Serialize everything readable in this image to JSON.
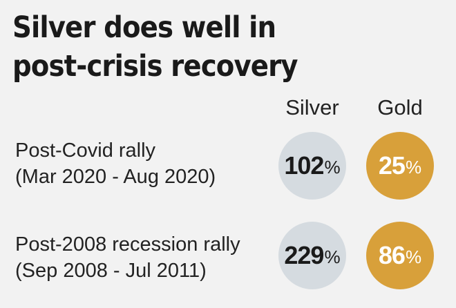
{
  "title_lines": [
    "Silver does well in",
    "post-crisis recovery"
  ],
  "columns": [
    "Silver",
    "Gold"
  ],
  "rows": [
    {
      "label": "Post-Covid rally",
      "period": "(Mar 2020 - Aug 2020)",
      "silver": "102",
      "gold": "25"
    },
    {
      "label": "Post-2008 recession rally",
      "period": "(Sep 2008 - Jul 2011)",
      "silver": "229",
      "gold": "86"
    }
  ],
  "unit": "%",
  "colors": {
    "silver": "#d5dbe0",
    "gold": "#d8a03a",
    "background": "#f2f2f2"
  },
  "chart_data": {
    "type": "table",
    "title": "Silver does well in post-crisis recovery",
    "columns": [
      "Silver",
      "Gold"
    ],
    "categories": [
      "Post-Covid rally (Mar 2020 - Aug 2020)",
      "Post-2008 recession rally (Sep 2008 - Jul 2011)"
    ],
    "series": [
      {
        "name": "Silver",
        "values": [
          102,
          229
        ]
      },
      {
        "name": "Gold",
        "values": [
          25,
          86
        ]
      }
    ],
    "unit": "%"
  }
}
